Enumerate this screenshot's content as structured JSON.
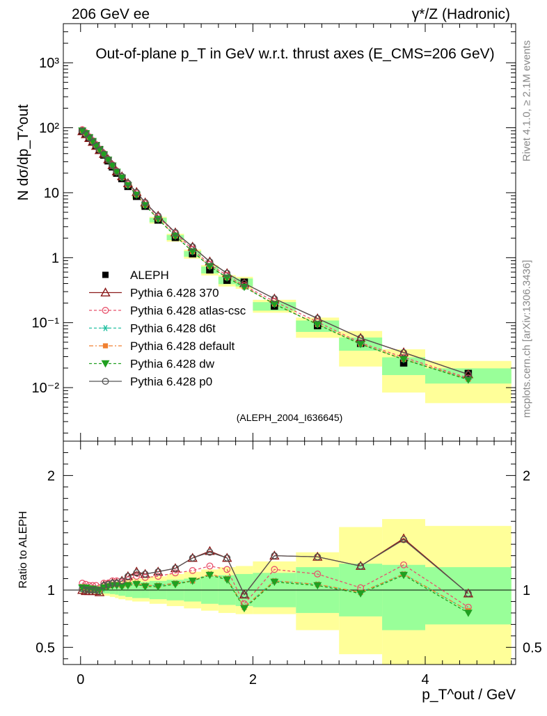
{
  "header": {
    "left": "206 GeV ee",
    "right": "γ*/Z (Hadronic)"
  },
  "side": {
    "top": "Rivet 4.1.0, ≥ 2.1M events",
    "bottom": "mcplots.cern.ch [arXiv:1306.3436]"
  },
  "chart_data": {
    "type": "line",
    "title": "Out-of-plane p_T in GeV w.r.t. thrust axes (E_CMS=206 GeV)",
    "analysis": "(ALEPH_2004_I636645)",
    "xlabel": "p_T^out / GeV",
    "ylabel": "N dσ/dp_T^out",
    "ratio_ylabel": "Ratio to ALEPH",
    "xlim": [
      -0.2,
      5.05
    ],
    "ylim": [
      0.0015,
      4000
    ],
    "ratio_ylim": [
      0.35,
      2.3
    ],
    "x_ticks": [
      0,
      2,
      4
    ],
    "y_ticks": [
      0.01,
      0.1,
      1,
      10,
      100,
      1000
    ],
    "y_tick_labels": [
      "10⁻²",
      "10⁻¹",
      "1",
      "10",
      "10²",
      "10³"
    ],
    "ratio_ticks": [
      0.5,
      1,
      2
    ],
    "ratio_tick_labels": [
      "0.5",
      "1",
      "2"
    ],
    "x": [
      0.02,
      0.06,
      0.1,
      0.14,
      0.18,
      0.22,
      0.27,
      0.32,
      0.37,
      0.42,
      0.48,
      0.55,
      0.65,
      0.75,
      0.9,
      1.1,
      1.3,
      1.5,
      1.7,
      1.9,
      2.25,
      2.75,
      3.25,
      3.75,
      4.5
    ],
    "bin_edges": [
      0.0,
      0.04,
      0.08,
      0.12,
      0.16,
      0.2,
      0.24,
      0.3,
      0.34,
      0.4,
      0.44,
      0.52,
      0.6,
      0.7,
      0.8,
      1.0,
      1.2,
      1.4,
      1.6,
      1.8,
      2.0,
      2.5,
      3.0,
      3.5,
      4.0,
      5.0
    ],
    "data": {
      "name": "ALEPH",
      "values": [
        88,
        80,
        70,
        61,
        53,
        46,
        38,
        31,
        25,
        20,
        16.5,
        12.5,
        8.8,
        6.2,
        3.8,
        2.05,
        1.15,
        0.65,
        0.45,
        0.42,
        0.18,
        0.09,
        0.048,
        0.024,
        0.0165
      ]
    },
    "uncertainty_bands": {
      "green": [
        [
          0.98,
          1.02
        ],
        [
          0.98,
          1.02
        ],
        [
          0.98,
          1.02
        ],
        [
          0.98,
          1.02
        ],
        [
          0.975,
          1.025
        ],
        [
          0.975,
          1.025
        ],
        [
          0.97,
          1.03
        ],
        [
          0.97,
          1.03
        ],
        [
          0.965,
          1.035
        ],
        [
          0.96,
          1.04
        ],
        [
          0.95,
          1.05
        ],
        [
          0.94,
          1.06
        ],
        [
          0.93,
          1.07
        ],
        [
          0.93,
          1.07
        ],
        [
          0.92,
          1.08
        ],
        [
          0.91,
          1.09
        ],
        [
          0.9,
          1.1
        ],
        [
          0.88,
          1.12
        ],
        [
          0.87,
          1.13
        ],
        [
          0.86,
          1.14
        ],
        [
          0.85,
          1.15
        ],
        [
          0.8,
          1.2
        ],
        [
          0.77,
          1.23
        ],
        [
          0.65,
          1.22
        ],
        [
          0.7,
          1.2
        ]
      ],
      "yellow": [
        [
          0.97,
          1.03
        ],
        [
          0.97,
          1.03
        ],
        [
          0.97,
          1.03
        ],
        [
          0.97,
          1.03
        ],
        [
          0.96,
          1.04
        ],
        [
          0.96,
          1.04
        ],
        [
          0.95,
          1.05
        ],
        [
          0.95,
          1.05
        ],
        [
          0.94,
          1.06
        ],
        [
          0.93,
          1.07
        ],
        [
          0.92,
          1.08
        ],
        [
          0.91,
          1.09
        ],
        [
          0.9,
          1.1
        ],
        [
          0.9,
          1.1
        ],
        [
          0.88,
          1.12
        ],
        [
          0.86,
          1.14
        ],
        [
          0.84,
          1.16
        ],
        [
          0.82,
          1.18
        ],
        [
          0.8,
          1.2
        ],
        [
          0.79,
          1.21
        ],
        [
          0.79,
          1.25
        ],
        [
          0.65,
          1.33
        ],
        [
          0.44,
          1.55
        ],
        [
          0.35,
          1.62
        ],
        [
          0.35,
          1.56
        ]
      ]
    },
    "series": [
      {
        "name": "Pythia 6.428 370",
        "color": "#8b1a1a",
        "dash": "solid",
        "marker": "triangle-open",
        "ratio": [
          1.0,
          0.99,
          0.99,
          0.99,
          0.99,
          0.98,
          1.04,
          1.05,
          1.06,
          1.06,
          1.08,
          1.12,
          1.16,
          1.14,
          1.16,
          1.19,
          1.28,
          1.34,
          1.28,
          0.96,
          1.3,
          1.29,
          1.21,
          1.45,
          0.97
        ]
      },
      {
        "name": "Pythia 6.428 atlas-csc",
        "color": "#e8506a",
        "dash": "4,3",
        "marker": "circle-open",
        "ratio": [
          1.06,
          1.05,
          1.04,
          1.04,
          1.04,
          1.02,
          1.06,
          1.06,
          1.08,
          1.08,
          1.07,
          1.09,
          1.12,
          1.11,
          1.12,
          1.15,
          1.17,
          1.21,
          1.18,
          0.88,
          1.18,
          1.14,
          1.02,
          1.22,
          0.85
        ]
      },
      {
        "name": "Pythia 6.428 d6t",
        "color": "#20c0a0",
        "dash": "4,3",
        "marker": "asterisk",
        "ratio": [
          1.03,
          1.02,
          1.02,
          1.01,
          1.01,
          1.0,
          1.03,
          1.04,
          1.05,
          1.05,
          1.04,
          1.05,
          1.06,
          1.04,
          1.04,
          1.06,
          1.08,
          1.14,
          1.1,
          0.85,
          1.08,
          1.05,
          0.98,
          1.14,
          0.82
        ]
      },
      {
        "name": "Pythia 6.428 default",
        "color": "#f08030",
        "dash": "6,3,2,3",
        "marker": "square",
        "ratio": [
          1.03,
          1.02,
          1.02,
          1.01,
          1.01,
          1.0,
          1.03,
          1.04,
          1.05,
          1.05,
          1.04,
          1.05,
          1.06,
          1.04,
          1.04,
          1.06,
          1.08,
          1.14,
          1.1,
          0.85,
          1.08,
          1.05,
          0.98,
          1.14,
          0.82
        ]
      },
      {
        "name": "Pythia 6.428 dw",
        "color": "#20a020",
        "dash": "4,3",
        "marker": "triangle-down",
        "ratio": [
          1.02,
          1.02,
          1.01,
          1.01,
          1.0,
          1.0,
          1.02,
          1.03,
          1.04,
          1.04,
          1.03,
          1.04,
          1.05,
          1.03,
          1.03,
          1.05,
          1.08,
          1.13,
          1.09,
          0.84,
          1.07,
          1.04,
          0.97,
          1.13,
          0.8
        ]
      },
      {
        "name": "Pythia 6.428 p0",
        "color": "#555555",
        "dash": "solid",
        "marker": "circle-open",
        "ratio": [
          1.01,
          1.0,
          1.0,
          1.0,
          1.0,
          0.99,
          1.04,
          1.05,
          1.06,
          1.06,
          1.08,
          1.12,
          1.15,
          1.14,
          1.16,
          1.19,
          1.28,
          1.33,
          1.28,
          0.96,
          1.3,
          1.29,
          1.21,
          1.44,
          0.97
        ]
      }
    ]
  },
  "colors": {
    "band_green": "#99ff99",
    "band_yellow": "#ffff99",
    "data": "#000000",
    "side_text": "#888888"
  }
}
